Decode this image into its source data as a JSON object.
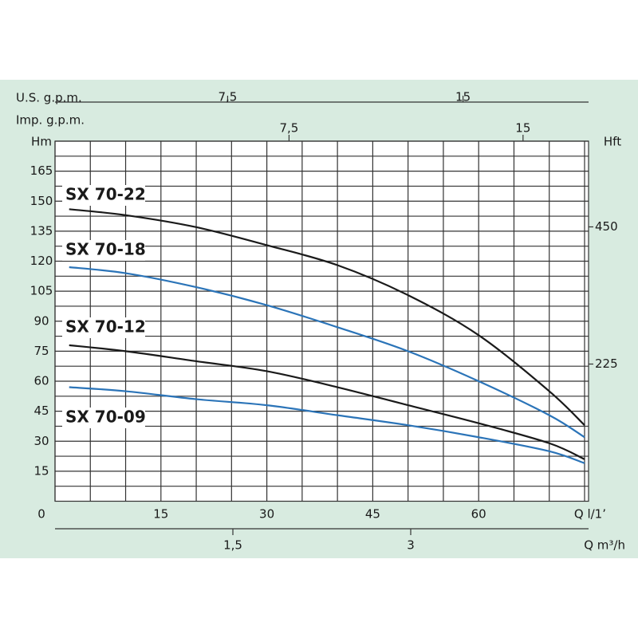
{
  "chart_data": {
    "type": "line",
    "x": [
      2,
      10,
      20,
      30,
      40,
      50,
      60,
      70,
      75
    ],
    "xlim": [
      0,
      75
    ],
    "xticks": [
      0,
      15,
      30,
      45,
      60
    ],
    "x_label": "Q l/1’",
    "ylim": [
      0,
      180
    ],
    "yticks": [
      15,
      30,
      45,
      60,
      75,
      90,
      105,
      120,
      135,
      150,
      165
    ],
    "y_label": "Hm",
    "y2lim": [
      0,
      590.6
    ],
    "y2ticks": [
      225,
      450
    ],
    "y2_label": "Hft",
    "grid": true,
    "top_axes": [
      {
        "title": "U.S. g.p.m.",
        "xlim": [
          2,
          19
        ],
        "xticks": [
          {
            "value": 7.5,
            "label": "7,5"
          },
          15
        ]
      },
      {
        "title": "Imp. g.p.m.",
        "xlim": [
          0,
          17.1
        ],
        "xticks": [
          {
            "value": 7.5,
            "label": "7,5"
          },
          15
        ]
      }
    ],
    "bottom_axis": {
      "title": "Q m³/h",
      "xlim": [
        0,
        4.5
      ],
      "xticks": [
        {
          "value": 1.5,
          "label": "1,5"
        },
        3
      ]
    },
    "series": [
      {
        "name": "SX 70-22",
        "color": "#1a1a1a",
        "values": [
          146,
          143,
          137,
          128,
          118,
          103,
          83,
          55,
          38
        ]
      },
      {
        "name": "SX 70-18",
        "color": "#2b74b8",
        "values": [
          117,
          114,
          107,
          98,
          87,
          75,
          60,
          43,
          32
        ]
      },
      {
        "name": "SX 70-12",
        "color": "#1a1a1a",
        "values": [
          78,
          75,
          70,
          65,
          57,
          48,
          39,
          29,
          21
        ]
      },
      {
        "name": "SX 70-09",
        "color": "#2b74b8",
        "values": [
          57,
          55,
          51,
          48,
          43,
          38,
          32,
          25,
          19
        ]
      }
    ]
  }
}
